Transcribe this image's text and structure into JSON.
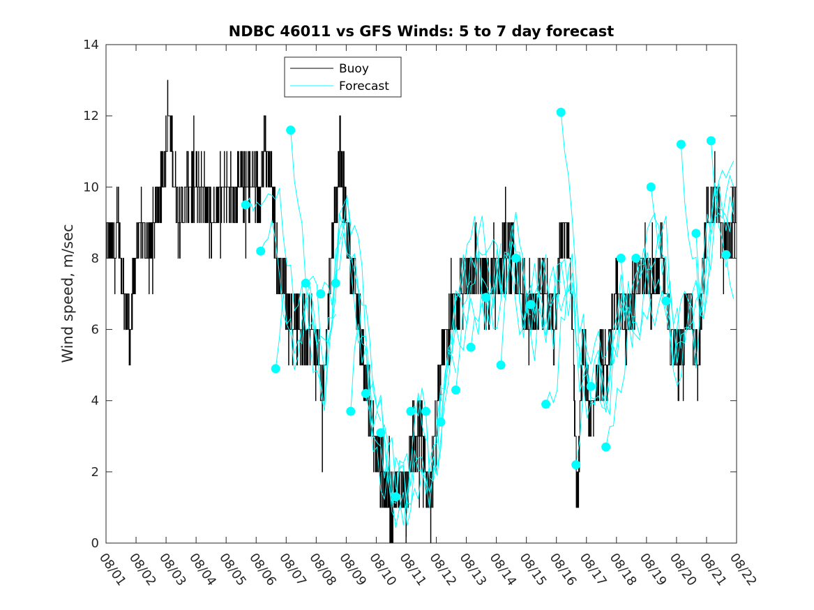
{
  "chart_data": {
    "type": "line",
    "title": "NDBC 46011 vs GFS Winds: 5 to 7 day forecast",
    "xlabel": "",
    "ylabel": "Wind speed, m/sec",
    "xlim": [
      0,
      21
    ],
    "ylim": [
      0,
      14
    ],
    "yticks": [
      0,
      2,
      4,
      6,
      8,
      10,
      12,
      14
    ],
    "xtick_labels": [
      "08/01",
      "08/02",
      "08/03",
      "08/04",
      "08/05",
      "08/06",
      "08/07",
      "08/08",
      "08/09",
      "08/10",
      "08/11",
      "08/12",
      "08/13",
      "08/14",
      "08/15",
      "08/16",
      "08/17",
      "08/18",
      "08/19",
      "08/20",
      "08/21",
      "08/22"
    ],
    "legend": {
      "placement": "top-center",
      "entries": [
        "Buoy",
        "Forecast"
      ]
    },
    "colors": {
      "buoy": "#000000",
      "forecast": "#00ffff",
      "marker": "#00ffff"
    },
    "buoy_keypoints": {
      "x": [
        0,
        0.2,
        0.4,
        0.6,
        0.8,
        1.0,
        1.2,
        1.4,
        1.6,
        1.8,
        2.0,
        2.1,
        2.3,
        2.5,
        2.7,
        3.0,
        3.3,
        3.5,
        3.8,
        4.0,
        4.3,
        4.6,
        4.9,
        5.1,
        5.3,
        5.5,
        5.7,
        6.0,
        6.3,
        6.6,
        6.9,
        7.2,
        7.5,
        7.8,
        8.0,
        8.3,
        8.6,
        8.9,
        9.2,
        9.5,
        9.8,
        10.0,
        10.2,
        10.5,
        10.8,
        11.1,
        11.4,
        11.7,
        12.0,
        12.3,
        12.6,
        12.9,
        13.2,
        13.5,
        13.8,
        14.1,
        14.4,
        14.7,
        14.9,
        15.1,
        15.3,
        15.5,
        15.7,
        15.9,
        16.1,
        16.4,
        16.7,
        17.0,
        17.3,
        17.6,
        17.9,
        18.2,
        18.5,
        18.8,
        19.1,
        19.4,
        19.7,
        20.0,
        20.3,
        20.6,
        20.9
      ],
      "y": [
        9,
        8,
        9,
        7,
        6,
        8,
        9,
        8,
        9,
        10,
        11,
        12,
        10,
        9,
        10,
        10,
        10,
        9,
        10,
        10,
        10,
        10,
        10,
        10,
        11,
        10,
        8,
        7,
        6,
        6,
        6,
        4,
        8,
        11,
        9,
        7,
        5,
        3,
        2,
        1,
        2,
        1,
        3,
        3,
        1,
        5,
        6,
        7,
        7,
        8,
        7,
        7,
        8,
        8,
        7,
        6,
        7,
        7,
        6,
        8,
        9,
        7,
        1,
        6,
        3,
        5,
        5,
        7,
        6,
        7,
        8,
        7,
        8,
        6,
        5,
        7,
        5,
        9,
        10,
        8,
        9
      ]
    },
    "forecast_markers": {
      "x": [
        4.65,
        5.15,
        5.65,
        6.15,
        6.65,
        7.15,
        7.65,
        8.15,
        8.65,
        9.15,
        9.65,
        10.15,
        10.65,
        11.15,
        11.65,
        12.15,
        12.65,
        13.15,
        13.65,
        14.15,
        14.65,
        15.15,
        15.65,
        16.15,
        16.65,
        17.15,
        17.65,
        18.15,
        18.65,
        19.15,
        19.65,
        20.15,
        20.65
      ],
      "y": [
        9.5,
        8.2,
        4.9,
        11.6,
        7.3,
        7.0,
        7.3,
        3.7,
        4.2,
        3.1,
        1.3,
        3.7,
        3.7,
        3.4,
        4.3,
        5.5,
        6.9,
        5.0,
        8.0,
        6.7,
        3.9,
        12.1,
        2.2,
        4.4,
        2.7,
        8.0,
        8.0,
        10.0,
        6.8,
        11.2,
        8.7,
        11.3,
        8.1
      ]
    }
  }
}
